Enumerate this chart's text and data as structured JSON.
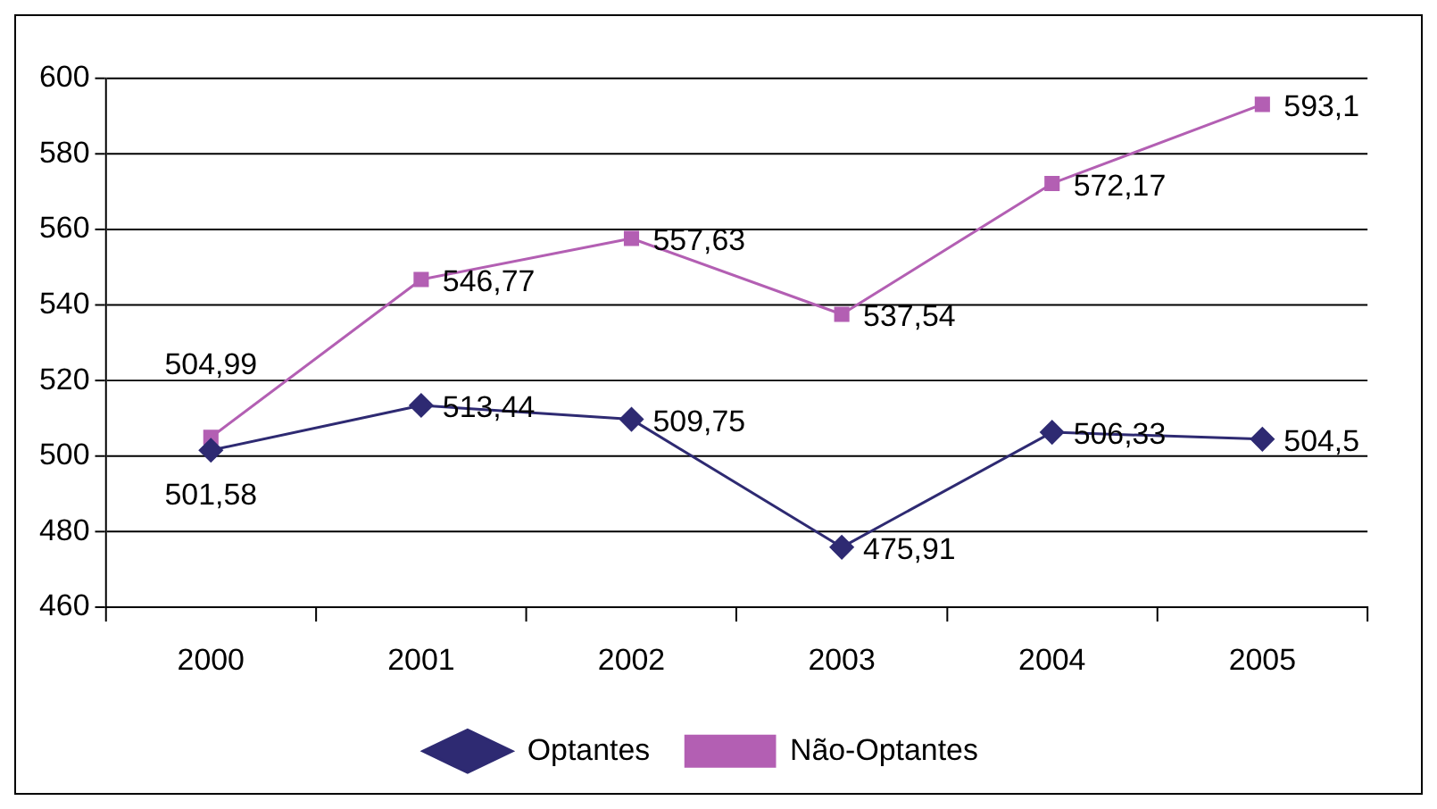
{
  "chart_data": {
    "type": "line",
    "categories": [
      "2000",
      "2001",
      "2002",
      "2003",
      "2004",
      "2005"
    ],
    "series": [
      {
        "name": "Optantes",
        "color": "#2e2a72",
        "values": [
          501.58,
          513.44,
          509.75,
          475.91,
          506.33,
          504.5
        ],
        "value_labels": [
          "501,58",
          "513,44",
          "509,75",
          "475,91",
          "506,33",
          "504,5"
        ],
        "marker": "diamond"
      },
      {
        "name": "Não-Optantes",
        "color": "#b35fb3",
        "values": [
          504.99,
          546.77,
          557.63,
          537.54,
          572.17,
          593.1
        ],
        "value_labels": [
          "504,99",
          "546,77",
          "557,63",
          "537,54",
          "572,17",
          "593,1"
        ],
        "marker": "square"
      }
    ],
    "ylim": [
      460,
      600
    ],
    "yticks": [
      460,
      480,
      500,
      520,
      540,
      560,
      580,
      600
    ],
    "grid": "y",
    "legend": "bottom",
    "line_style": "solid"
  }
}
